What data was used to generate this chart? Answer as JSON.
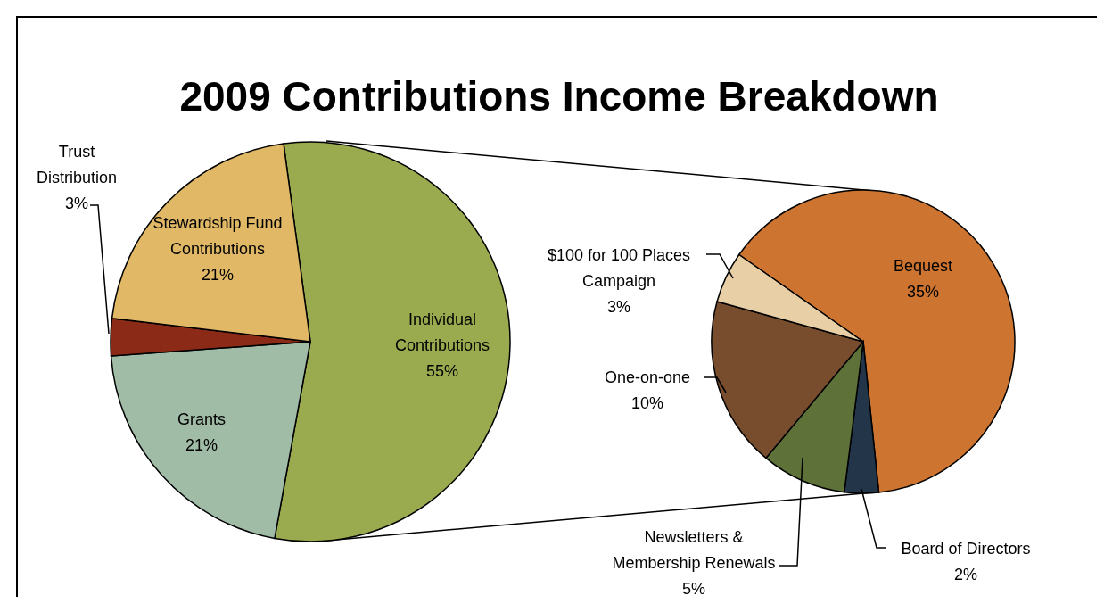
{
  "chart_data": [
    {
      "type": "pie",
      "title": "2009 Contributions Income Breakdown",
      "categories": [
        "Individual Contributions",
        "Grants",
        "Trust Distribution",
        "Stewardship Fund Contributions"
      ],
      "values": [
        55,
        21,
        3,
        21
      ],
      "value_labels": [
        "55%",
        "21%",
        "3%",
        "21%"
      ],
      "colors": [
        "#9aab4f",
        "#a0bba6",
        "#8b2a16",
        "#e0b866"
      ]
    },
    {
      "type": "pie",
      "categories": [
        "Bequest",
        "Board of Directors",
        "Newsletters & Membership Renewals",
        "One-on-one",
        "$100 for 100 Places Campaign"
      ],
      "values": [
        35,
        2,
        5,
        10,
        3
      ],
      "value_labels": [
        "35%",
        "2%",
        "5%",
        "10%",
        "3%"
      ],
      "colors": [
        "#cc7430",
        "#223549",
        "#5e7139",
        "#774d2e",
        "#e8cfa5"
      ]
    }
  ]
}
